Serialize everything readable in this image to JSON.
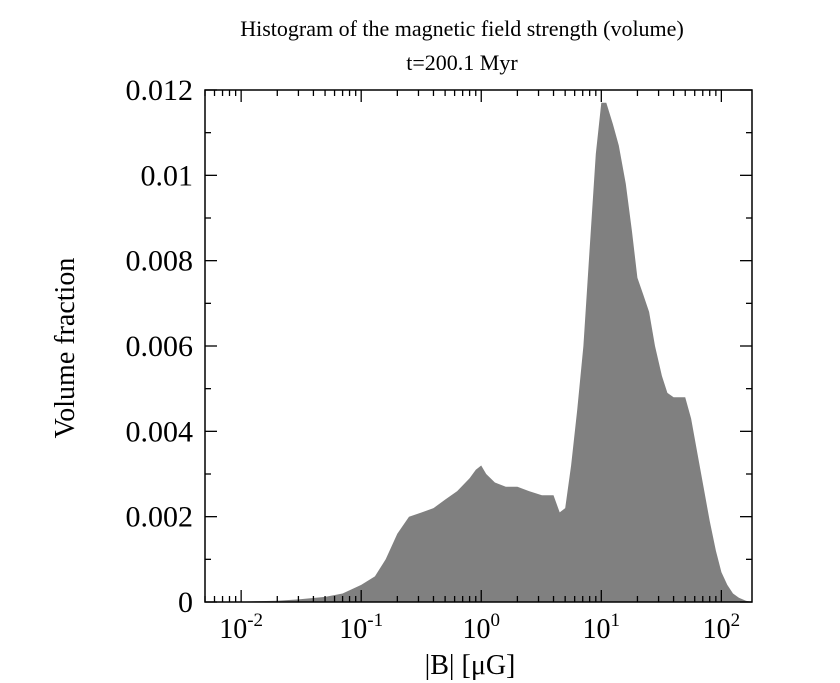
{
  "chart_data": {
    "type": "area",
    "title": "Histogram of the magnetic field strength (volume)",
    "subtitle": "t=200.1 Myr",
    "xlabel": "|B| [μG]",
    "ylabel": "Volume fraction",
    "x_scale": "log",
    "xlim": [
      0.005,
      180
    ],
    "ylim": [
      0,
      0.012
    ],
    "y_ticks": [
      "0",
      "0.002",
      "0.004",
      "0.006",
      "0.008",
      "0.01",
      "0.012"
    ],
    "x_ticks": [
      {
        "base": "10",
        "exp": "-2",
        "value": 0.01
      },
      {
        "base": "10",
        "exp": "-1",
        "value": 0.1
      },
      {
        "base": "10",
        "exp": "0",
        "value": 1
      },
      {
        "base": "10",
        "exp": "1",
        "value": 10
      },
      {
        "base": "10",
        "exp": "2",
        "value": 100
      }
    ],
    "grid": false,
    "legend": "none",
    "fill_color": "#808080",
    "series": [
      {
        "x": [
          0.005,
          0.01,
          0.02,
          0.03,
          0.05,
          0.07,
          0.1,
          0.13,
          0.16,
          0.2,
          0.25,
          0.32,
          0.4,
          0.5,
          0.63,
          0.8,
          0.9,
          1.0,
          1.1,
          1.3,
          1.6,
          2.0,
          2.5,
          3.2,
          4.0,
          4.5,
          5.0,
          5.6,
          6.3,
          7.1,
          8.0,
          9.0,
          10.0,
          11.0,
          12.5,
          14.0,
          16.0,
          18.0,
          20.0,
          22.4,
          25.0,
          28.0,
          32.0,
          35.5,
          40.0,
          45.0,
          50.0,
          56.0,
          63.0,
          71.0,
          80.0,
          90.0,
          100.0,
          112.0,
          125.0,
          140.0,
          160.0,
          180.0
        ],
        "y": [
          0,
          1e-05,
          3e-05,
          6e-05,
          0.00012,
          0.0002,
          0.0004,
          0.0006,
          0.001,
          0.0016,
          0.002,
          0.0021,
          0.0022,
          0.0024,
          0.0026,
          0.0029,
          0.0031,
          0.0032,
          0.003,
          0.0028,
          0.0027,
          0.0027,
          0.0026,
          0.0025,
          0.0025,
          0.0021,
          0.0022,
          0.0032,
          0.0045,
          0.006,
          0.0083,
          0.0105,
          0.0117,
          0.0117,
          0.0112,
          0.0107,
          0.0098,
          0.0087,
          0.0076,
          0.0072,
          0.0068,
          0.006,
          0.0053,
          0.0049,
          0.0048,
          0.0048,
          0.0048,
          0.0043,
          0.0035,
          0.0027,
          0.0019,
          0.0012,
          0.0007,
          0.0004,
          0.0002,
          0.0001,
          3e-05,
          0
        ]
      }
    ]
  }
}
